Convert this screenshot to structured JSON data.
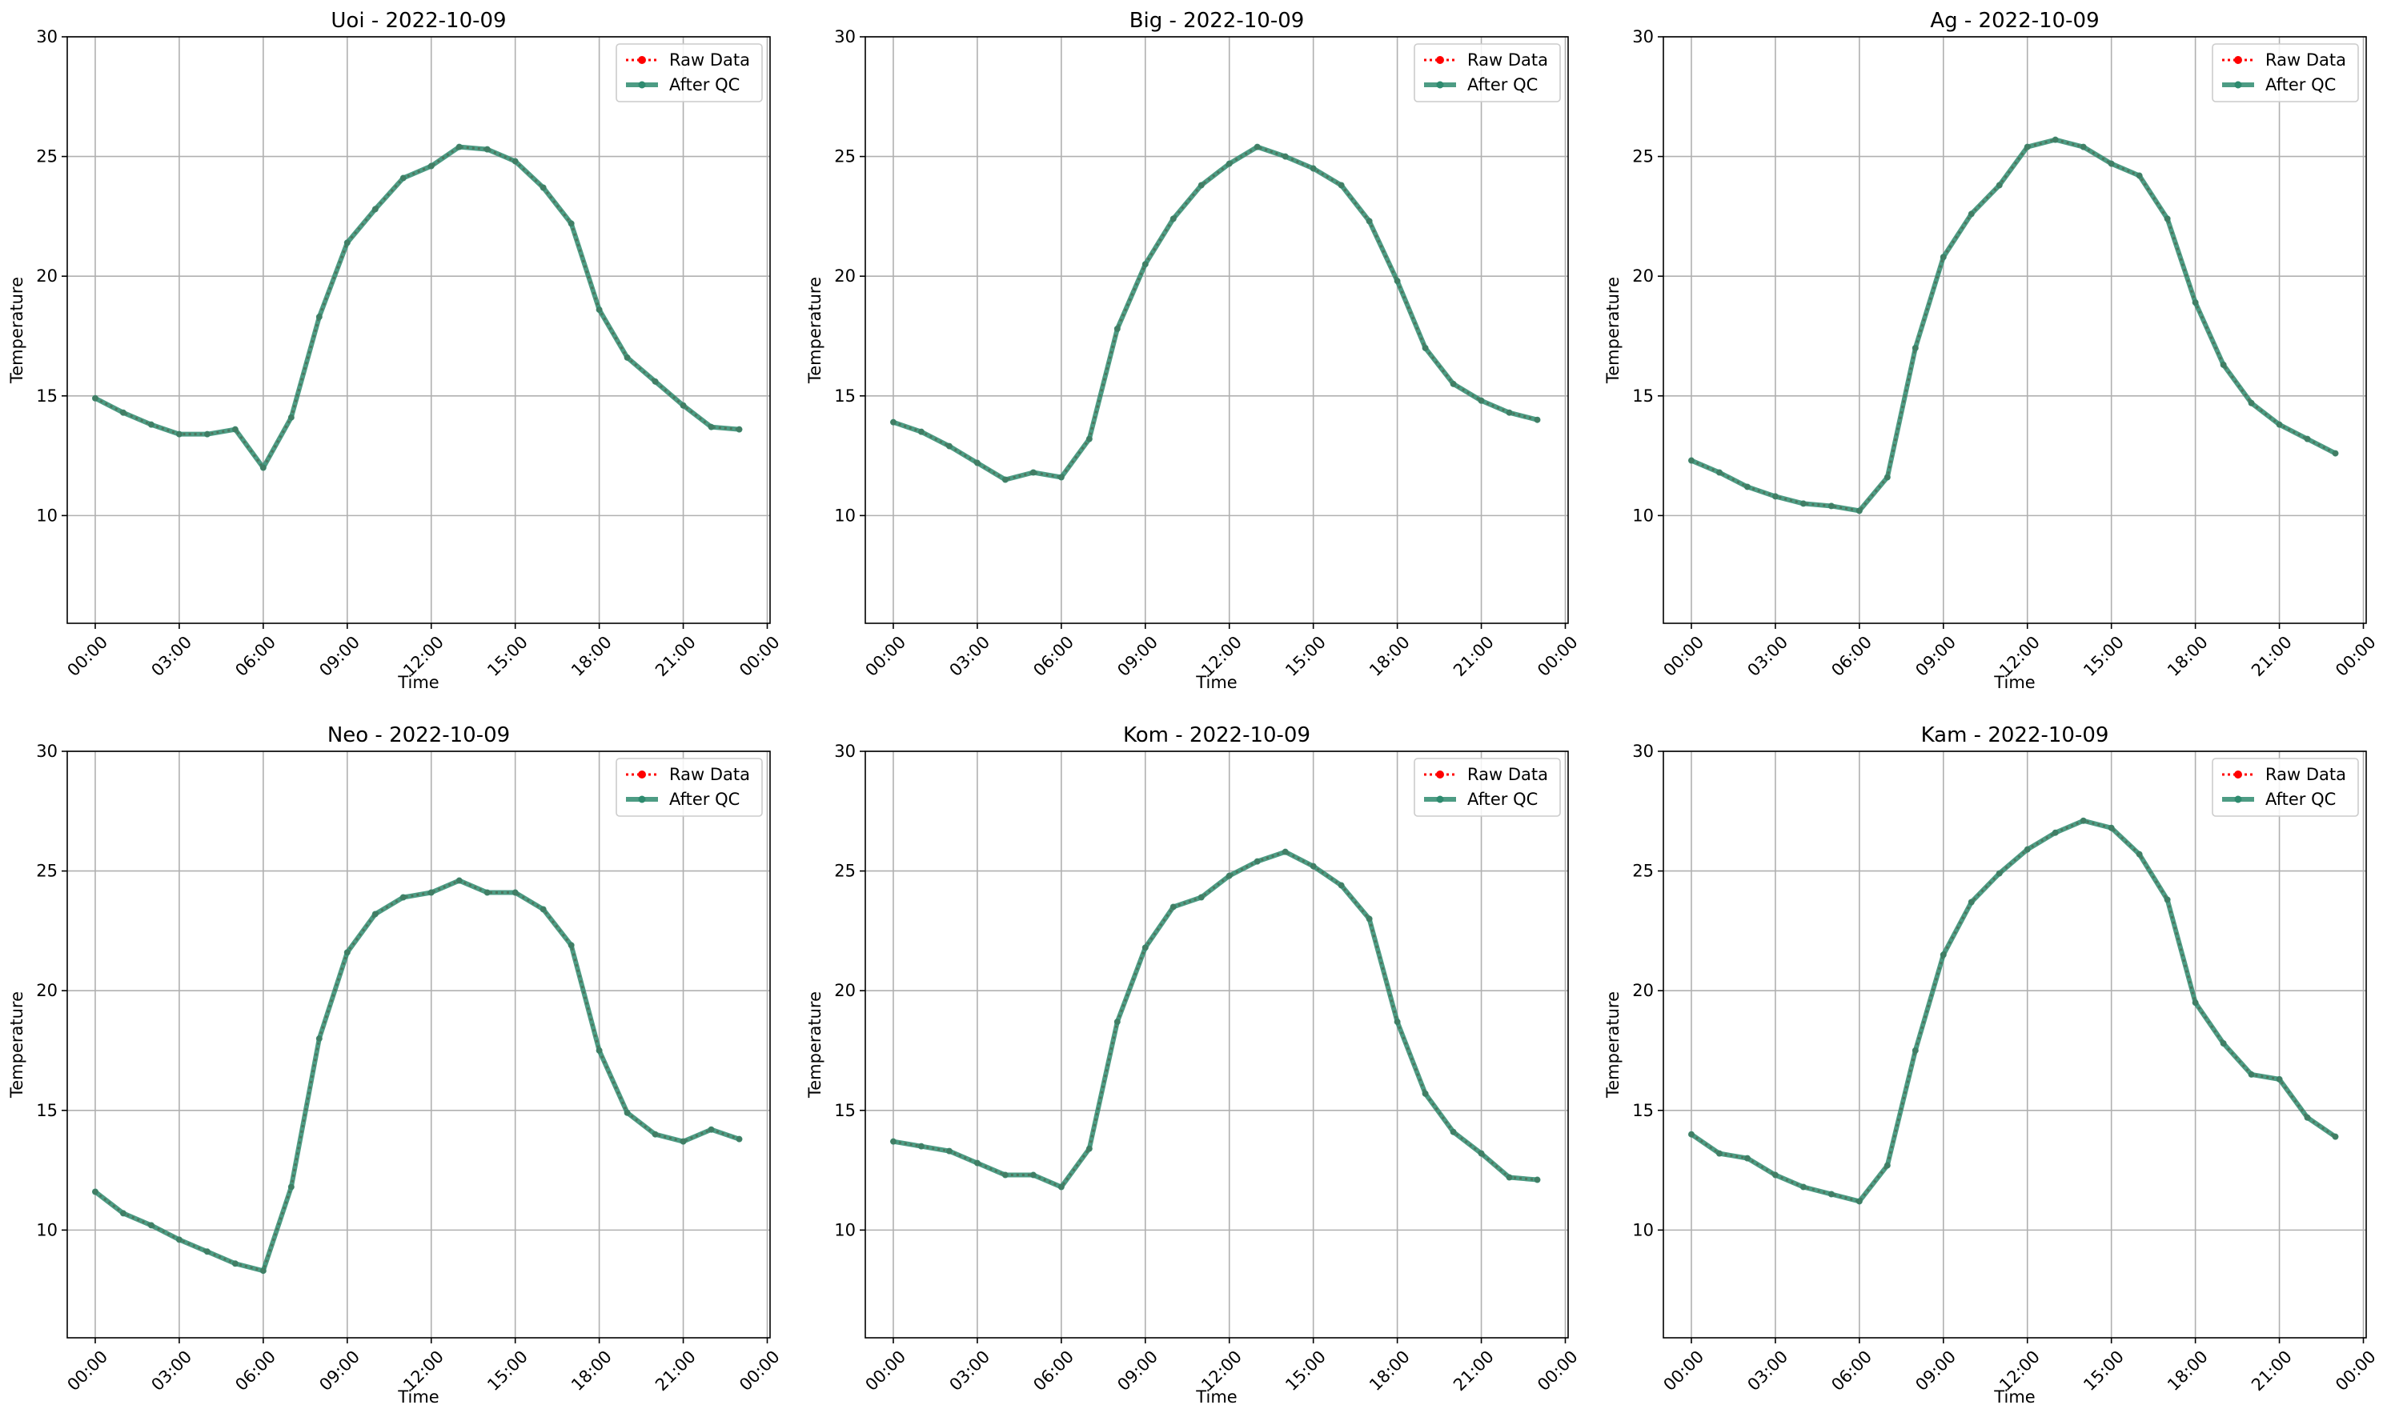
{
  "chart_data": [
    {
      "type": "line",
      "title": "Uoi - 2022-10-09",
      "xlabel": "Time",
      "ylabel": "Temperature",
      "ylim": [
        5.5,
        30
      ],
      "y_ticks": [
        10,
        15,
        20,
        25,
        30
      ],
      "x_ticks": [
        "00:00",
        "03:00",
        "06:00",
        "09:00",
        "12:00",
        "15:00",
        "18:00",
        "21:00",
        "00:00"
      ],
      "grid": true,
      "legend_position": "top-right",
      "series": [
        {
          "name": "Raw Data",
          "color": "#ff0000",
          "style": "dotted",
          "values": [
            14.9,
            14.3,
            13.8,
            13.4,
            13.4,
            13.6,
            12.0,
            14.1,
            18.3,
            21.4,
            22.8,
            24.1,
            24.6,
            25.4,
            25.3,
            24.8,
            23.7,
            22.2,
            18.6,
            16.6,
            15.6,
            14.6,
            13.7,
            13.6
          ]
        },
        {
          "name": "After QC",
          "color": "#2e8b6f",
          "style": "solid",
          "values": [
            14.9,
            14.3,
            13.8,
            13.4,
            13.4,
            13.6,
            12.0,
            14.1,
            18.3,
            21.4,
            22.8,
            24.1,
            24.6,
            25.4,
            25.3,
            24.8,
            23.7,
            22.2,
            18.6,
            16.6,
            15.6,
            14.6,
            13.7,
            13.6
          ]
        }
      ]
    },
    {
      "type": "line",
      "title": "Big - 2022-10-09",
      "xlabel": "Time",
      "ylabel": "Temperature",
      "ylim": [
        5.5,
        30
      ],
      "y_ticks": [
        10,
        15,
        20,
        25,
        30
      ],
      "x_ticks": [
        "00:00",
        "03:00",
        "06:00",
        "09:00",
        "12:00",
        "15:00",
        "18:00",
        "21:00",
        "00:00"
      ],
      "grid": true,
      "legend_position": "top-right",
      "series": [
        {
          "name": "Raw Data",
          "color": "#ff0000",
          "style": "dotted",
          "values": [
            13.9,
            13.5,
            12.9,
            12.2,
            11.5,
            11.8,
            11.6,
            13.2,
            17.8,
            20.5,
            22.4,
            23.8,
            24.7,
            25.4,
            25.0,
            24.5,
            23.8,
            22.3,
            19.8,
            17.0,
            15.5,
            14.8,
            14.3,
            14.0
          ]
        },
        {
          "name": "After QC",
          "color": "#2e8b6f",
          "style": "solid",
          "values": [
            13.9,
            13.5,
            12.9,
            12.2,
            11.5,
            11.8,
            11.6,
            13.2,
            17.8,
            20.5,
            22.4,
            23.8,
            24.7,
            25.4,
            25.0,
            24.5,
            23.8,
            22.3,
            19.8,
            17.0,
            15.5,
            14.8,
            14.3,
            14.0
          ]
        }
      ]
    },
    {
      "type": "line",
      "title": "Ag - 2022-10-09",
      "xlabel": "Time",
      "ylabel": "Temperature",
      "ylim": [
        5.5,
        30
      ],
      "y_ticks": [
        10,
        15,
        20,
        25,
        30
      ],
      "x_ticks": [
        "00:00",
        "03:00",
        "06:00",
        "09:00",
        "12:00",
        "15:00",
        "18:00",
        "21:00",
        "00:00"
      ],
      "grid": true,
      "legend_position": "top-right",
      "series": [
        {
          "name": "Raw Data",
          "color": "#ff0000",
          "style": "dotted",
          "values": [
            12.3,
            11.8,
            11.2,
            10.8,
            10.5,
            10.4,
            10.2,
            11.6,
            17.0,
            20.8,
            22.6,
            23.8,
            25.4,
            25.7,
            25.4,
            24.7,
            24.2,
            22.4,
            18.9,
            16.3,
            14.7,
            13.8,
            13.2,
            12.6
          ]
        },
        {
          "name": "After QC",
          "color": "#2e8b6f",
          "style": "solid",
          "values": [
            12.3,
            11.8,
            11.2,
            10.8,
            10.5,
            10.4,
            10.2,
            11.6,
            17.0,
            20.8,
            22.6,
            23.8,
            25.4,
            25.7,
            25.4,
            24.7,
            24.2,
            22.4,
            18.9,
            16.3,
            14.7,
            13.8,
            13.2,
            12.6
          ]
        }
      ]
    },
    {
      "type": "line",
      "title": "Neo - 2022-10-09",
      "xlabel": "Time",
      "ylabel": "Temperature",
      "ylim": [
        5.5,
        30
      ],
      "y_ticks": [
        10,
        15,
        20,
        25,
        30
      ],
      "x_ticks": [
        "00:00",
        "03:00",
        "06:00",
        "09:00",
        "12:00",
        "15:00",
        "18:00",
        "21:00",
        "00:00"
      ],
      "grid": true,
      "legend_position": "top-right",
      "series": [
        {
          "name": "Raw Data",
          "color": "#ff0000",
          "style": "dotted",
          "values": [
            11.6,
            10.7,
            10.2,
            9.6,
            9.1,
            8.6,
            8.3,
            11.8,
            18.0,
            21.6,
            23.2,
            23.9,
            24.1,
            24.6,
            24.1,
            24.1,
            23.4,
            21.9,
            17.5,
            14.9,
            14.0,
            13.7,
            14.2,
            13.8
          ]
        },
        {
          "name": "After QC",
          "color": "#2e8b6f",
          "style": "solid",
          "values": [
            11.6,
            10.7,
            10.2,
            9.6,
            9.1,
            8.6,
            8.3,
            11.8,
            18.0,
            21.6,
            23.2,
            23.9,
            24.1,
            24.6,
            24.1,
            24.1,
            23.4,
            21.9,
            17.5,
            14.9,
            14.0,
            13.7,
            14.2,
            13.8
          ]
        }
      ]
    },
    {
      "type": "line",
      "title": "Kom - 2022-10-09",
      "xlabel": "Time",
      "ylabel": "Temperature",
      "ylim": [
        5.5,
        30
      ],
      "y_ticks": [
        10,
        15,
        20,
        25,
        30
      ],
      "x_ticks": [
        "00:00",
        "03:00",
        "06:00",
        "09:00",
        "12:00",
        "15:00",
        "18:00",
        "21:00",
        "00:00"
      ],
      "grid": true,
      "legend_position": "top-right",
      "series": [
        {
          "name": "Raw Data",
          "color": "#ff0000",
          "style": "dotted",
          "values": [
            13.7,
            13.5,
            13.3,
            12.8,
            12.3,
            12.3,
            11.8,
            13.4,
            18.7,
            21.8,
            23.5,
            23.9,
            24.8,
            25.4,
            25.8,
            25.2,
            24.4,
            23.0,
            18.7,
            15.7,
            14.1,
            13.2,
            12.2,
            12.1
          ]
        },
        {
          "name": "After QC",
          "color": "#2e8b6f",
          "style": "solid",
          "values": [
            13.7,
            13.5,
            13.3,
            12.8,
            12.3,
            12.3,
            11.8,
            13.4,
            18.7,
            21.8,
            23.5,
            23.9,
            24.8,
            25.4,
            25.8,
            25.2,
            24.4,
            23.0,
            18.7,
            15.7,
            14.1,
            13.2,
            12.2,
            12.1
          ]
        }
      ]
    },
    {
      "type": "line",
      "title": "Kam - 2022-10-09",
      "xlabel": "Time",
      "ylabel": "Temperature",
      "ylim": [
        5.5,
        30
      ],
      "y_ticks": [
        10,
        15,
        20,
        25,
        30
      ],
      "x_ticks": [
        "00:00",
        "03:00",
        "06:00",
        "09:00",
        "12:00",
        "15:00",
        "18:00",
        "21:00",
        "00:00"
      ],
      "grid": true,
      "legend_position": "top-right",
      "series": [
        {
          "name": "Raw Data",
          "color": "#ff0000",
          "style": "dotted",
          "values": [
            14.0,
            13.2,
            13.0,
            12.3,
            11.8,
            11.5,
            11.2,
            12.7,
            17.5,
            21.5,
            23.7,
            24.9,
            25.9,
            26.6,
            27.1,
            26.8,
            25.7,
            23.8,
            19.5,
            17.8,
            16.5,
            16.3,
            14.7,
            13.9
          ]
        },
        {
          "name": "After QC",
          "color": "#2e8b6f",
          "style": "solid",
          "values": [
            14.0,
            13.2,
            13.0,
            12.3,
            11.8,
            11.5,
            11.2,
            12.7,
            17.5,
            21.5,
            23.7,
            24.9,
            25.9,
            26.6,
            27.1,
            26.8,
            25.7,
            23.8,
            19.5,
            17.8,
            16.5,
            16.3,
            14.7,
            13.9
          ]
        }
      ]
    }
  ]
}
